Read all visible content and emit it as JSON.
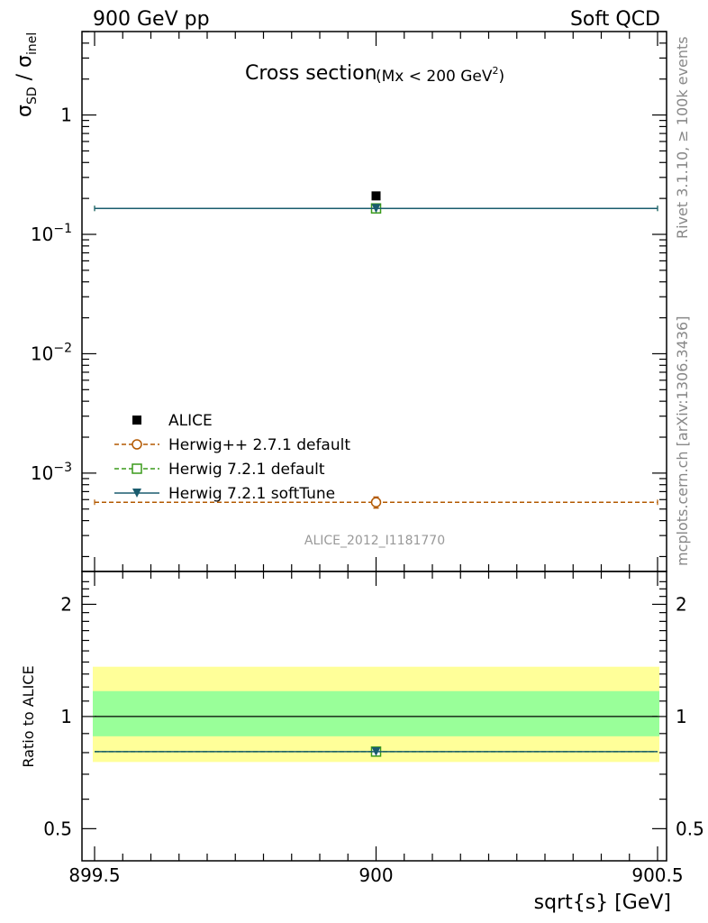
{
  "header": {
    "left": "900 GeV pp",
    "right": "Soft QCD"
  },
  "side_labels": {
    "rivet": "Rivet 3.1.10, ≥ 100k events",
    "mcplots": "mcplots.cern.ch [arXiv:1306.3436]"
  },
  "chart_data": [
    {
      "type": "scatter",
      "title": "Cross section",
      "title_suffix": "(Mx < 200 GeV",
      "title_sup": "2",
      "title_close": ")",
      "ylabel_main": "σ",
      "ylabel_sub1": "SD",
      "ylabel_mid": " / σ",
      "ylabel_sub2": "inel",
      "yscale": "log",
      "ylim": [
        0.00015,
        5
      ],
      "xlim": [
        899.5,
        900.5
      ],
      "yticks": [
        {
          "value": 1,
          "label": "1"
        },
        {
          "value": 0.1,
          "base": "10",
          "exp": "−1"
        },
        {
          "value": 0.01,
          "base": "10",
          "exp": "−2"
        },
        {
          "value": 0.001,
          "base": "10",
          "exp": "−3"
        }
      ],
      "watermark": "ALICE_2012_I1181770",
      "legend_position": "lower-left",
      "series": [
        {
          "name": "ALICE",
          "color": "#000000",
          "marker": "filled-square",
          "x": [
            900
          ],
          "y": [
            0.21
          ]
        },
        {
          "name": "Herwig++ 2.7.1 default",
          "color": "#b35900",
          "marker": "open-circle",
          "line": "dashed",
          "x": [
            900
          ],
          "y": [
            0.00057
          ],
          "y_err": [
            6e-05
          ]
        },
        {
          "name": "Herwig 7.2.1 default",
          "color": "#3a9a1a",
          "marker": "open-square",
          "line": "dashed",
          "x": [
            900
          ],
          "y": [
            0.165
          ]
        },
        {
          "name": "Herwig 7.2.1 softTune",
          "color": "#1a5c6e",
          "marker": "filled-triangle-down",
          "line": "solid",
          "x": [
            900
          ],
          "y": [
            0.165
          ]
        }
      ]
    },
    {
      "type": "scatter",
      "ylabel": "Ratio to ALICE",
      "yscale": "log",
      "ylim": [
        0.41,
        2.45
      ],
      "xlim": [
        899.5,
        900.5
      ],
      "xlabel": "sqrt{s} [GeV]",
      "xticks": [
        {
          "value": 899.5,
          "label": "899.5"
        },
        {
          "value": 900,
          "label": "900"
        },
        {
          "value": 900.5,
          "label": "900.5"
        }
      ],
      "yticks": [
        {
          "value": 2,
          "label": "2"
        },
        {
          "value": 1,
          "label": "1"
        },
        {
          "value": 0.5,
          "label": "0.5"
        }
      ],
      "bands": [
        {
          "name": "total uncertainty",
          "low": 0.755,
          "high": 1.36,
          "color": "#ffff99"
        },
        {
          "name": "stat uncertainty",
          "low": 0.885,
          "high": 1.17,
          "color": "#99ff99"
        }
      ],
      "reference_line": 1,
      "series": [
        {
          "name": "Herwig 7.2.1 default",
          "color": "#3a9a1a",
          "x": [
            900
          ],
          "y": [
            0.805
          ]
        },
        {
          "name": "Herwig 7.2.1 softTune",
          "color": "#1a5c6e",
          "x": [
            900
          ],
          "y": [
            0.805
          ]
        }
      ]
    }
  ]
}
